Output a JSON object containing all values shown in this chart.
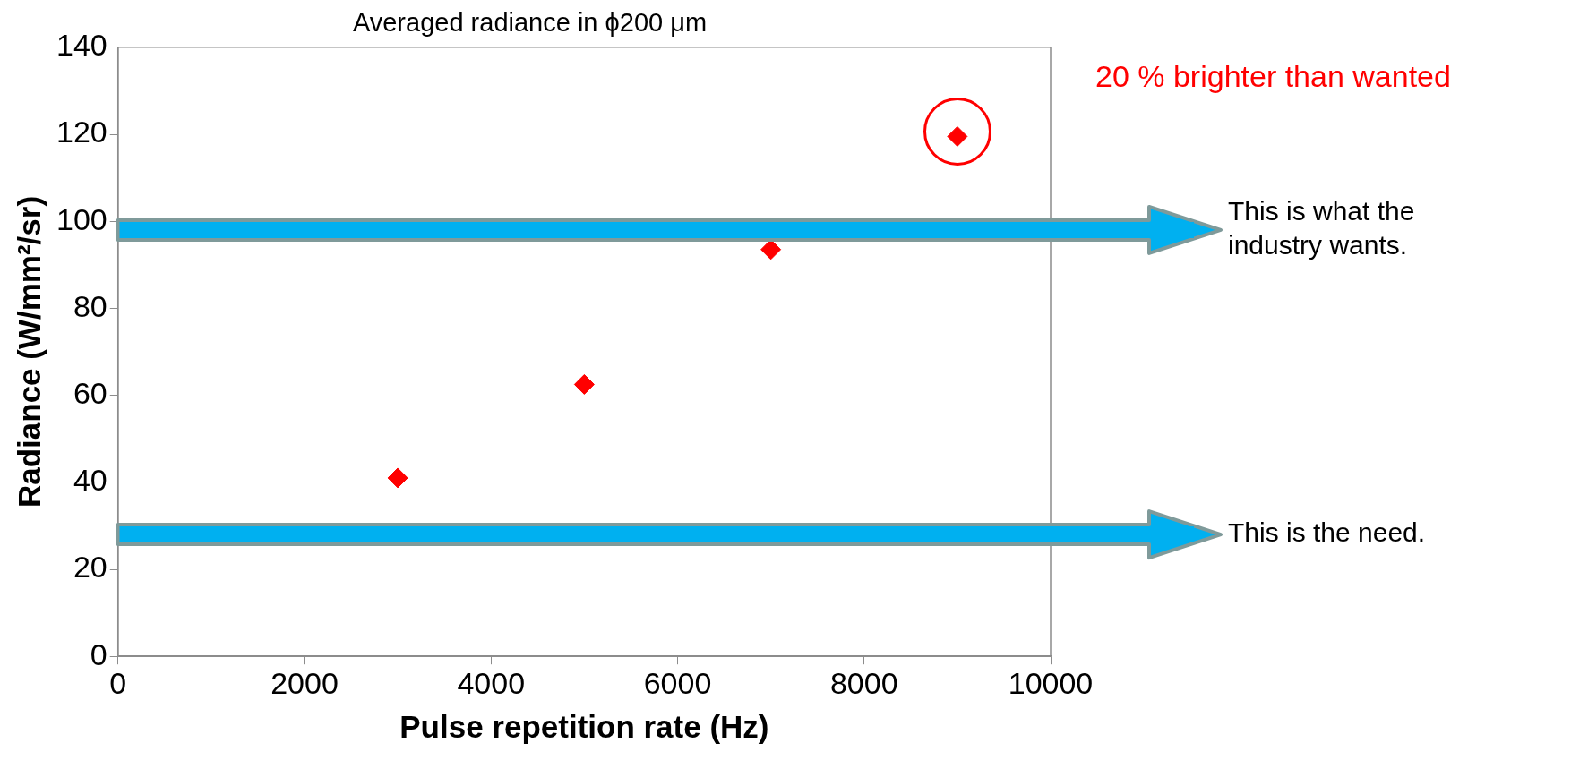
{
  "chart_data": {
    "type": "scatter",
    "title": "Averaged radiance in ϕ200 μm",
    "xlabel": "Pulse repetition rate (Hz)",
    "ylabel": "Radiance (W/mm²/sr)",
    "x": [
      3000,
      5000,
      7000,
      9000
    ],
    "series": [
      {
        "color": "#ff0000",
        "values": [
          41,
          62.5,
          93.5,
          119.5
        ]
      }
    ],
    "marker": "diamond",
    "grid": false,
    "legend": false,
    "xlim": [
      0,
      10000
    ],
    "xticks": [
      0,
      2000,
      4000,
      6000,
      8000,
      10000
    ],
    "ylim": [
      0,
      140
    ],
    "yticks": [
      0,
      20,
      40,
      60,
      80,
      100,
      120,
      140
    ],
    "ref_lines": [
      {
        "axis": "y",
        "value": 98,
        "label": "This is what the industry wants.",
        "color": "#00b0f0"
      },
      {
        "axis": "y",
        "value": 28,
        "label": "This is the need.",
        "color": "#00b0f0"
      }
    ],
    "annotations": [
      "20 % brighter than wanted"
    ]
  }
}
